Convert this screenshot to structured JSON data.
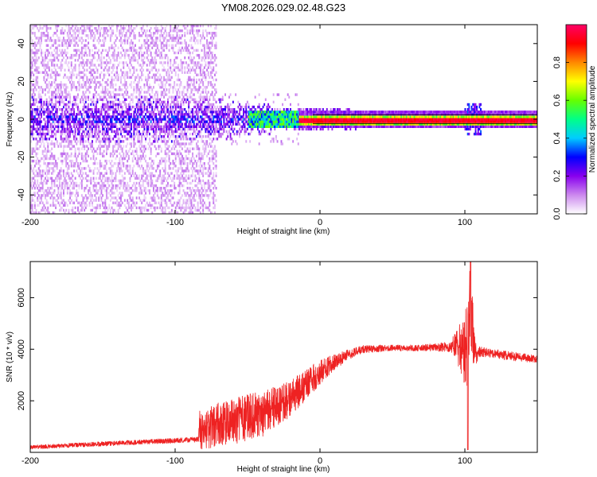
{
  "title": "YM08.2026.029.02.48.G23",
  "chart_data": [
    {
      "type": "heatmap",
      "name": "spectrogram",
      "xlabel": "Height of straight line (km)",
      "ylabel": "Frequency (Hz)",
      "xlim": [
        -200,
        150
      ],
      "ylim": [
        -50,
        50
      ],
      "xticks": [
        "-200",
        "-100",
        "0",
        "100"
      ],
      "yticks": [
        "-40",
        "-20",
        "0",
        "20",
        "40"
      ],
      "colorbar": {
        "label": "Normalized spectral amplitude",
        "range": [
          0,
          1
        ],
        "ticks": [
          "0.0",
          "0.2",
          "0.4",
          "0.6",
          "0.8"
        ],
        "colormap": [
          "#ffffff",
          "#cc88ee",
          "#8800ee",
          "#0000ff",
          "#00ccff",
          "#00ff88",
          "#66ff00",
          "#ffff00",
          "#ff8800",
          "#ff0000",
          "#ff0066"
        ]
      },
      "features": {
        "diffuse_noise_extent_km": [
          -200,
          -72
        ],
        "dense_band_center_hz": 0,
        "dense_band_halfwidth_hz": 10,
        "tone_line_start_km": -15,
        "tone_frequency_hz": 0,
        "burst_km": 105
      }
    },
    {
      "type": "line",
      "name": "snr",
      "xlabel": "Height of straight line (km)",
      "ylabel": "SNR (10 * v/v)",
      "xlim": [
        -200,
        150
      ],
      "ylim": [
        0,
        7400
      ],
      "xticks": [
        "-200",
        "-100",
        "0",
        "100"
      ],
      "yticks": [
        "2000",
        "4000",
        "6000"
      ],
      "color": "#ee2222",
      "series_envelope": {
        "x": [
          -200,
          -84,
          -83,
          -60,
          -40,
          -20,
          0,
          10,
          20,
          30,
          50,
          70,
          90,
          95,
          100,
          102,
          104,
          106,
          108,
          110,
          150
        ],
        "baseline": [
          200,
          500,
          900,
          1200,
          1500,
          2100,
          3100,
          3500,
          3800,
          4000,
          4050,
          4050,
          4100,
          4150,
          3900,
          4400,
          6000,
          4300,
          3700,
          3900,
          3600
        ],
        "spread": [
          80,
          100,
          800,
          900,
          900,
          700,
          500,
          300,
          200,
          150,
          120,
          120,
          200,
          700,
          1500,
          1800,
          1800,
          1000,
          300,
          200,
          150
        ]
      }
    }
  ]
}
